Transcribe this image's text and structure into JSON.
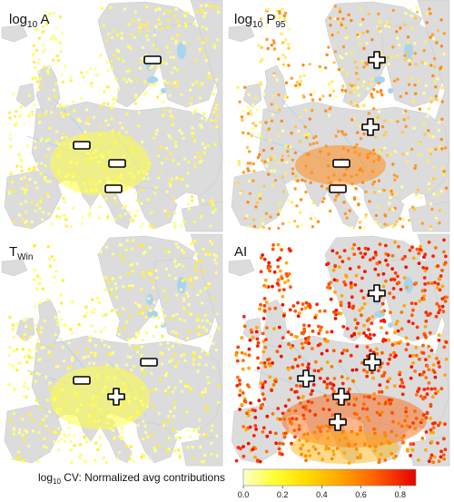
{
  "figure": {
    "panels": [
      {
        "id": "log10A",
        "prefix": "log",
        "sub": "10",
        "suffix": " A",
        "signs": [
          [
            "minus",
            168,
            66
          ],
          [
            "minus",
            90,
            160
          ],
          [
            "minus",
            129,
            180
          ],
          [
            "minus",
            125,
            208
          ]
        ]
      },
      {
        "id": "log10P95",
        "prefix": "log",
        "sub": "10",
        "suffix": " P",
        "sub2": "95",
        "signs": [
          [
            "plus",
            415,
            66
          ],
          [
            "plus",
            408,
            140
          ],
          [
            "minus",
            376,
            180
          ],
          [
            "minus",
            372,
            208
          ]
        ]
      },
      {
        "id": "TWin",
        "prefix": "T",
        "sub": "Win",
        "suffix": "",
        "signs": [
          [
            "minus",
            164,
            399
          ],
          [
            "minus",
            90,
            419
          ],
          [
            "plus",
            128,
            437
          ]
        ]
      },
      {
        "id": "AI",
        "prefix": "AI",
        "sub": "",
        "suffix": "",
        "signs": [
          [
            "plus",
            415,
            323
          ],
          [
            "plus",
            410,
            399
          ],
          [
            "plus",
            337,
            417
          ],
          [
            "plus",
            376,
            437
          ],
          [
            "plus",
            372,
            465
          ]
        ]
      }
    ]
  },
  "colorbar": {
    "label_prefix": "log",
    "label_sub": "10",
    "label_suffix": " CV: Normalized avg contributions",
    "ticks": [
      "0.0",
      "0.2",
      "0.4",
      "0.6",
      "0.8"
    ],
    "tick_values": [
      0.0,
      0.2,
      0.4,
      0.6,
      0.8
    ],
    "range": [
      0.0,
      0.88
    ],
    "colors": [
      "#ffffbf",
      "#ffff00",
      "#ffd200",
      "#ffa500",
      "#ff6a00",
      "#ff2a00",
      "#e60000"
    ]
  },
  "colors": {
    "land": "#dcdcdc",
    "sea": "#ffffff",
    "water": "#a8d4f0"
  }
}
